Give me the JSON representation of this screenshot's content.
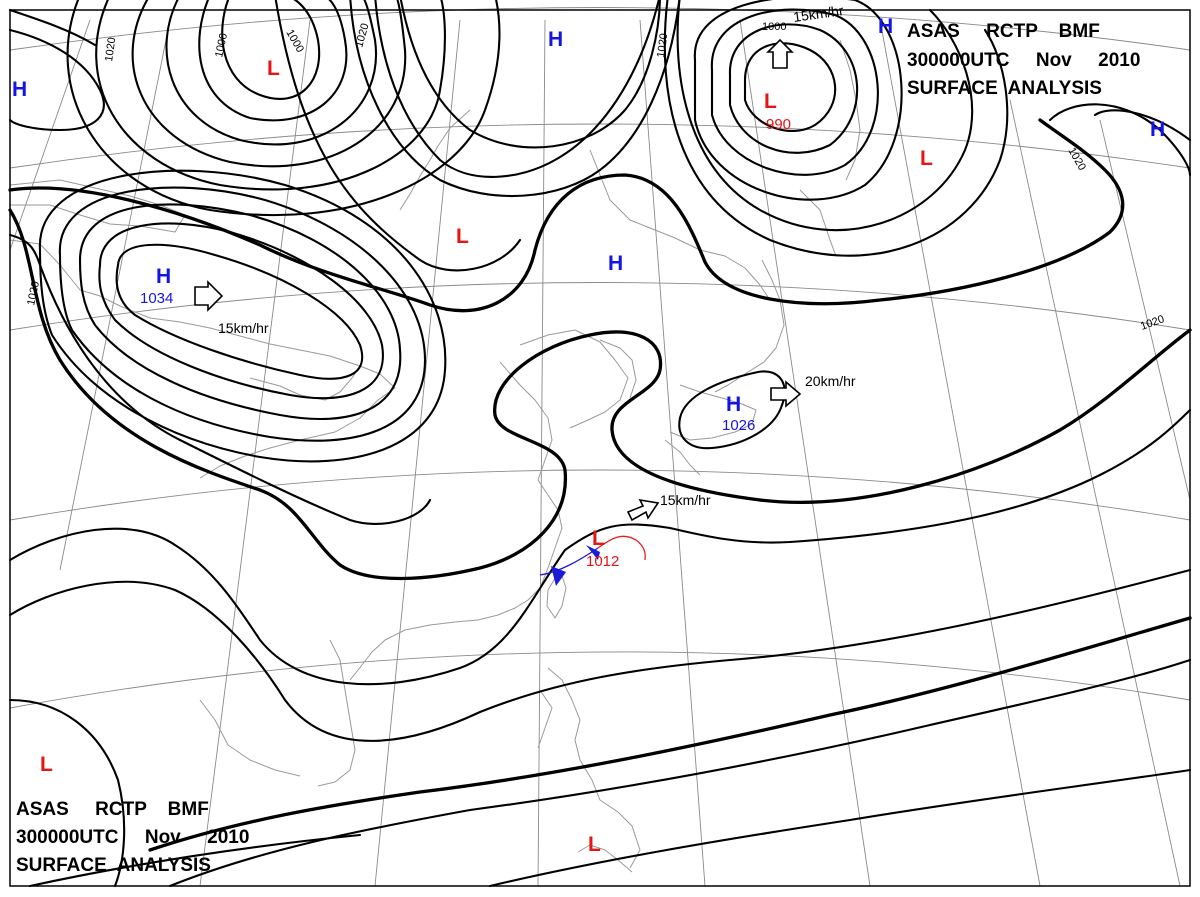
{
  "title_blocks": [
    {
      "line1": "ASAS     RCTP    BMF",
      "line2": "300000UTC     Nov     2010",
      "line3": "SURFACE  ANALYSIS"
    },
    {
      "line1": "ASAS     RCTP    BMF",
      "line2": "300000UTC     Nov     2010",
      "line3": "SURFACE  ANALYSIS"
    }
  ],
  "isobar_labels": [
    "1020",
    "1000",
    "1000",
    "1020",
    "1020",
    "1000",
    "1020",
    "1020",
    "1020"
  ],
  "pressure_centers": [
    {
      "type": "H",
      "value": ""
    },
    {
      "type": "L",
      "value": ""
    },
    {
      "type": "H",
      "value": ""
    },
    {
      "type": "H",
      "value": ""
    },
    {
      "type": "L",
      "value": "990"
    },
    {
      "type": "H",
      "value": ""
    },
    {
      "type": "L",
      "value": ""
    },
    {
      "type": "H",
      "value": "1034"
    },
    {
      "type": "L",
      "value": ""
    },
    {
      "type": "H",
      "value": ""
    },
    {
      "type": "H",
      "value": "1026"
    },
    {
      "type": "L",
      "value": "1012"
    },
    {
      "type": "L",
      "value": ""
    },
    {
      "type": "L",
      "value": ""
    }
  ],
  "movements": [
    "15km/hr",
    "15km/hr",
    "20km/hr",
    "15km/hr"
  ],
  "colors": {
    "high": "#1414e6",
    "low": "#e61414",
    "isobar": "#000000",
    "grid": "#8a8a8a",
    "coast": "#9a9a9a",
    "cold_front": "#1a1ad8"
  }
}
